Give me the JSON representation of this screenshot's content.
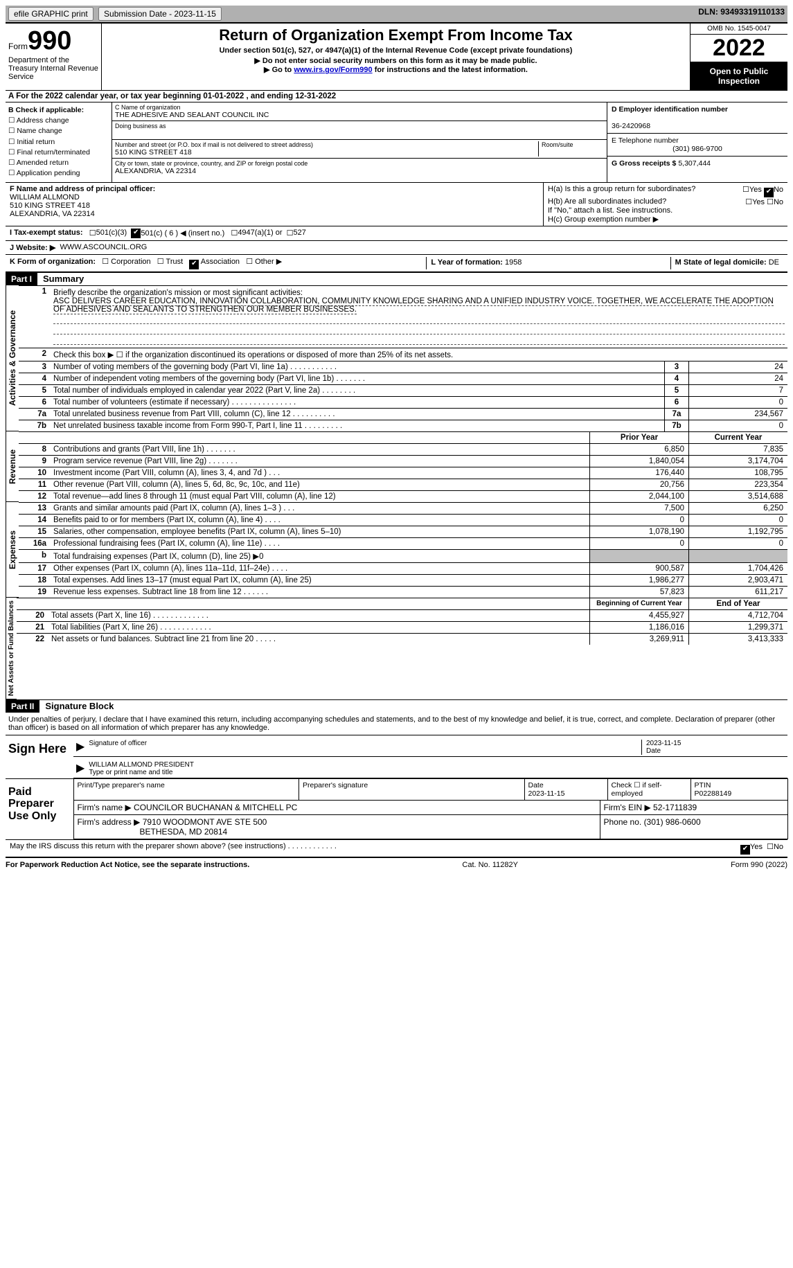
{
  "topbar": {
    "efile": "efile GRAPHIC print",
    "submission_label": "Submission Date - ",
    "submission_date": "2023-11-15",
    "dln_label": "DLN:",
    "dln": "93493319110133"
  },
  "header": {
    "form_prefix": "Form",
    "form_num": "990",
    "dept": "Department of the Treasury Internal Revenue Service",
    "title": "Return of Organization Exempt From Income Tax",
    "sub1": "Under section 501(c), 527, or 4947(a)(1) of the Internal Revenue Code (except private foundations)",
    "sub2": "▶ Do not enter social security numbers on this form as it may be made public.",
    "sub3_pre": "▶ Go to ",
    "sub3_link": "www.irs.gov/Form990",
    "sub3_post": " for instructions and the latest information.",
    "omb": "OMB No. 1545-0047",
    "year": "2022",
    "open": "Open to Public Inspection"
  },
  "period": {
    "line": "A For the 2022 calendar year, or tax year beginning 01-01-2022    , and ending 12-31-2022"
  },
  "b": {
    "label": "B Check if applicable:",
    "opts": [
      "Address change",
      "Name change",
      "Initial return",
      "Final return/terminated",
      "Amended return",
      "Application pending"
    ]
  },
  "c": {
    "name_label": "C Name of organization",
    "name": "THE ADHESIVE AND SEALANT COUNCIL INC",
    "dba_label": "Doing business as",
    "street_label": "Number and street (or P.O. box if mail is not delivered to street address)",
    "room_label": "Room/suite",
    "street": "510 KING STREET 418",
    "city_label": "City or town, state or province, country, and ZIP or foreign postal code",
    "city": "ALEXANDRIA, VA  22314"
  },
  "d": {
    "ein_label": "D Employer identification number",
    "ein": "36-2420968",
    "tel_label": "E Telephone number",
    "tel": "(301) 986-9700",
    "gross_label": "G Gross receipts $",
    "gross": "5,307,444"
  },
  "f": {
    "label": "F Name and address of principal officer:",
    "name": "WILLIAM ALLMOND",
    "addr1": "510 KING STREET 418",
    "addr2": "ALEXANDRIA, VA  22314"
  },
  "h": {
    "ha": "H(a)  Is this a group return for subordinates?",
    "yes": "Yes",
    "no": "No",
    "hb": "H(b)  Are all subordinates included?",
    "hb_note": "If \"No,\" attach a list. See instructions.",
    "hc": "H(c)  Group exemption number ▶"
  },
  "i": {
    "label": "I   Tax-exempt status:",
    "c3": "501(c)(3)",
    "c": "501(c) ( 6 ) ◀ (insert no.)",
    "a1": "4947(a)(1) or",
    "s527": "527"
  },
  "j": {
    "label": "J   Website: ▶",
    "val": "WWW.ASCOUNCIL.ORG"
  },
  "k": {
    "label": "K Form of organization:",
    "corp": "Corporation",
    "trust": "Trust",
    "assoc": "Association",
    "other": "Other ▶",
    "l_label": "L Year of formation:",
    "l_val": "1958",
    "m_label": "M State of legal domicile:",
    "m_val": "DE"
  },
  "part1": {
    "hdr": "Part I",
    "title": "Summary",
    "mission_label": "Briefly describe the organization's mission or most significant activities:",
    "mission": "ASC DELIVERS CAREER EDUCATION, INNOVATION COLLABORATION, COMMUNITY KNOWLEDGE SHARING AND A UNIFIED INDUSTRY VOICE. TOGETHER, WE ACCELERATE THE ADOPTION OF ADHESIVES AND SEALANTS TO STRENGTHEN OUR MEMBER BUSINESSES.",
    "l2": "Check this box ▶ ☐ if the organization discontinued its operations or disposed of more than 25% of its net assets.",
    "rows_top": [
      {
        "n": "3",
        "t": "Number of voting members of the governing body (Part VI, line 1a)  .    .    .    .    .    .    .    .    .    .    .",
        "v": "24"
      },
      {
        "n": "4",
        "t": "Number of independent voting members of the governing body (Part VI, line 1b)  .    .    .    .    .    .    .",
        "v": "24"
      },
      {
        "n": "5",
        "t": "Total number of individuals employed in calendar year 2022 (Part V, line 2a)  .    .    .    .    .    .    .    .",
        "v": "7"
      },
      {
        "n": "6",
        "t": "Total number of volunteers (estimate if necessary)    .    .    .    .    .    .    .    .    .    .    .    .    .    .    .",
        "v": "0"
      },
      {
        "n": "7a",
        "t": "Total unrelated business revenue from Part VIII, column (C), line 12   .    .    .    .    .    .    .    .    .    .",
        "v": "234,567"
      },
      {
        "n": "7b",
        "t": "Net unrelated business taxable income from Form 990-T, Part I, line 11  .    .    .    .    .    .    .    .    .",
        "v": "0"
      }
    ],
    "prior": "Prior Year",
    "current": "Current Year",
    "rev": [
      {
        "n": "8",
        "t": "Contributions and grants (Part VIII, line 1h)    .    .    .    .    .    .    .",
        "p": "6,850",
        "c": "7,835"
      },
      {
        "n": "9",
        "t": "Program service revenue (Part VIII, line 2g)    .    .    .    .    .    .    .",
        "p": "1,840,054",
        "c": "3,174,704"
      },
      {
        "n": "10",
        "t": "Investment income (Part VIII, column (A), lines 3, 4, and 7d )    .    .    .",
        "p": "176,440",
        "c": "108,795"
      },
      {
        "n": "11",
        "t": "Other revenue (Part VIII, column (A), lines 5, 6d, 8c, 9c, 10c, and 11e)",
        "p": "20,756",
        "c": "223,354"
      },
      {
        "n": "12",
        "t": "Total revenue—add lines 8 through 11 (must equal Part VIII, column (A), line 12)",
        "p": "2,044,100",
        "c": "3,514,688"
      }
    ],
    "exp": [
      {
        "n": "13",
        "t": "Grants and similar amounts paid (Part IX, column (A), lines 1–3 )   .    .    .",
        "p": "7,500",
        "c": "6,250"
      },
      {
        "n": "14",
        "t": "Benefits paid to or for members (Part IX, column (A), line 4)  .    .    .    .",
        "p": "0",
        "c": "0"
      },
      {
        "n": "15",
        "t": "Salaries, other compensation, employee benefits (Part IX, column (A), lines 5–10)",
        "p": "1,078,190",
        "c": "1,192,795"
      },
      {
        "n": "16a",
        "t": "Professional fundraising fees (Part IX, column (A), line 11e)  .    .    .    .",
        "p": "0",
        "c": "0"
      },
      {
        "n": "b",
        "t": "Total fundraising expenses (Part IX, column (D), line 25) ▶0",
        "p": "",
        "c": "",
        "gray": true
      },
      {
        "n": "17",
        "t": "Other expenses (Part IX, column (A), lines 11a–11d, 11f–24e)  .    .    .    .",
        "p": "900,587",
        "c": "1,704,426"
      },
      {
        "n": "18",
        "t": "Total expenses. Add lines 13–17 (must equal Part IX, column (A), line 25)",
        "p": "1,986,277",
        "c": "2,903,471"
      },
      {
        "n": "19",
        "t": "Revenue less expenses. Subtract line 18 from line 12 .    .    .    .    .    .",
        "p": "57,823",
        "c": "611,217"
      }
    ],
    "beg": "Beginning of Current Year",
    "end": "End of Year",
    "net": [
      {
        "n": "20",
        "t": "Total assets (Part X, line 16) .    .    .    .    .    .    .    .    .    .    .    .    .",
        "p": "4,455,927",
        "c": "4,712,704"
      },
      {
        "n": "21",
        "t": "Total liabilities (Part X, line 26) .    .    .    .    .    .    .    .    .    .    .    .",
        "p": "1,186,016",
        "c": "1,299,371"
      },
      {
        "n": "22",
        "t": "Net assets or fund balances. Subtract line 21 from line 20 .    .    .    .    .",
        "p": "3,269,911",
        "c": "3,413,333"
      }
    ],
    "side_ag": "Activities & Governance",
    "side_rev": "Revenue",
    "side_exp": "Expenses",
    "side_net": "Net Assets or Fund Balances"
  },
  "part2": {
    "hdr": "Part II",
    "title": "Signature Block",
    "decl": "Under penalties of perjury, I declare that I have examined this return, including accompanying schedules and statements, and to the best of my knowledge and belief, it is true, correct, and complete. Declaration of preparer (other than officer) is based on all information of which preparer has any knowledge.",
    "sign_here": "Sign Here",
    "sig_officer": "Signature of officer",
    "sig_date": "2023-11-15",
    "date_lbl": "Date",
    "officer_name": "WILLIAM ALLMOND  PRESIDENT",
    "officer_lbl": "Type or print name and title",
    "paid": "Paid Preparer Use Only",
    "prep_name_lbl": "Print/Type preparer's name",
    "prep_sig_lbl": "Preparer's signature",
    "prep_date_lbl": "Date",
    "prep_date": "2023-11-15",
    "self_lbl": "Check ☐ if self-employed",
    "ptin_lbl": "PTIN",
    "ptin": "P02288149",
    "firm_name_lbl": "Firm's name      ▶",
    "firm_name": "COUNCILOR BUCHANAN & MITCHELL PC",
    "firm_ein_lbl": "Firm's EIN ▶",
    "firm_ein": "52-1711839",
    "firm_addr_lbl": "Firm's address ▶",
    "firm_addr": "7910 WOODMONT AVE STE 500",
    "firm_city": "BETHESDA, MD  20814",
    "firm_tel_lbl": "Phone no.",
    "firm_tel": "(301) 986-0600",
    "discuss": "May the IRS discuss this return with the preparer shown above? (see instructions)  .    .    .    .    .    .    .    .    .    .    .    .",
    "yes": "Yes",
    "no": "No"
  },
  "footer": {
    "l": "For Paperwork Reduction Act Notice, see the separate instructions.",
    "c": "Cat. No. 11282Y",
    "r": "Form 990 (2022)"
  }
}
